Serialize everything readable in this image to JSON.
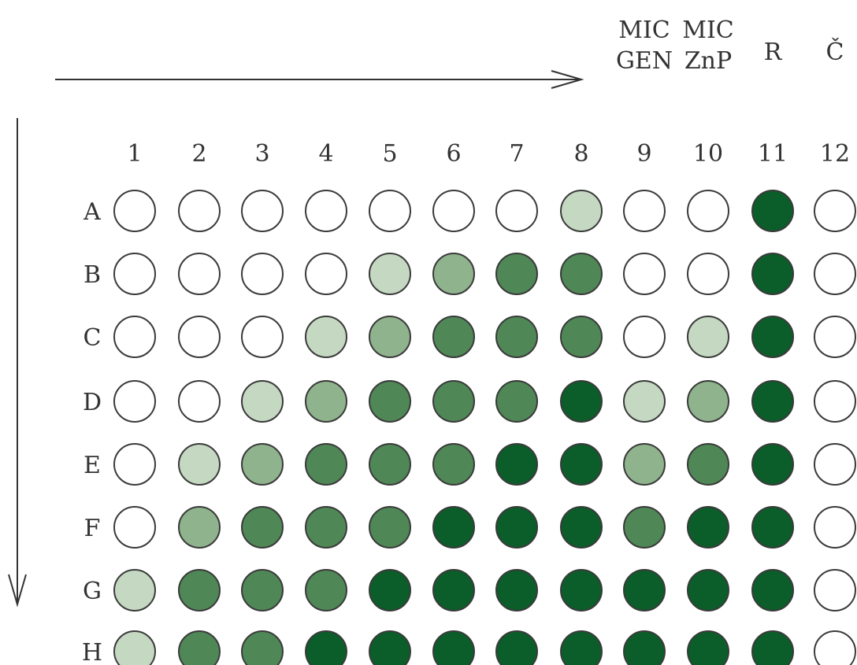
{
  "header_labels": [
    {
      "col": 9,
      "line1": "MIC",
      "line2": "GEN"
    },
    {
      "col": 10,
      "line1": "MIC",
      "line2": "ZnP"
    },
    {
      "col": 11,
      "line1": "R",
      "line2": ""
    },
    {
      "col": 12,
      "line1": "Č",
      "line2": ""
    }
  ],
  "columns": [
    "1",
    "2",
    "3",
    "4",
    "5",
    "6",
    "7",
    "8",
    "9",
    "10",
    "11",
    "12"
  ],
  "rows": [
    "A",
    "B",
    "C",
    "D",
    "E",
    "F",
    "G",
    "H"
  ],
  "colors": {
    "0": "#ffffff",
    "1": "#c5d9c2",
    "2": "#8fb38d",
    "3": "#4f8756",
    "4": "#0b5d29",
    "stroke": "#3a3a3a"
  },
  "wells": [
    [
      0,
      0,
      0,
      0,
      0,
      0,
      0,
      1,
      0,
      0,
      4,
      0
    ],
    [
      0,
      0,
      0,
      0,
      1,
      2,
      3,
      3,
      0,
      0,
      4,
      0
    ],
    [
      0,
      0,
      0,
      1,
      2,
      3,
      3,
      3,
      0,
      1,
      4,
      0
    ],
    [
      0,
      0,
      1,
      2,
      3,
      3,
      3,
      4,
      1,
      2,
      4,
      0
    ],
    [
      0,
      1,
      2,
      3,
      3,
      3,
      4,
      4,
      2,
      3,
      4,
      0
    ],
    [
      0,
      2,
      3,
      3,
      3,
      4,
      4,
      4,
      3,
      4,
      4,
      0
    ],
    [
      1,
      3,
      3,
      3,
      4,
      4,
      4,
      4,
      4,
      4,
      4,
      0
    ],
    [
      1,
      3,
      3,
      4,
      4,
      4,
      4,
      4,
      4,
      4,
      4,
      0
    ]
  ]
}
